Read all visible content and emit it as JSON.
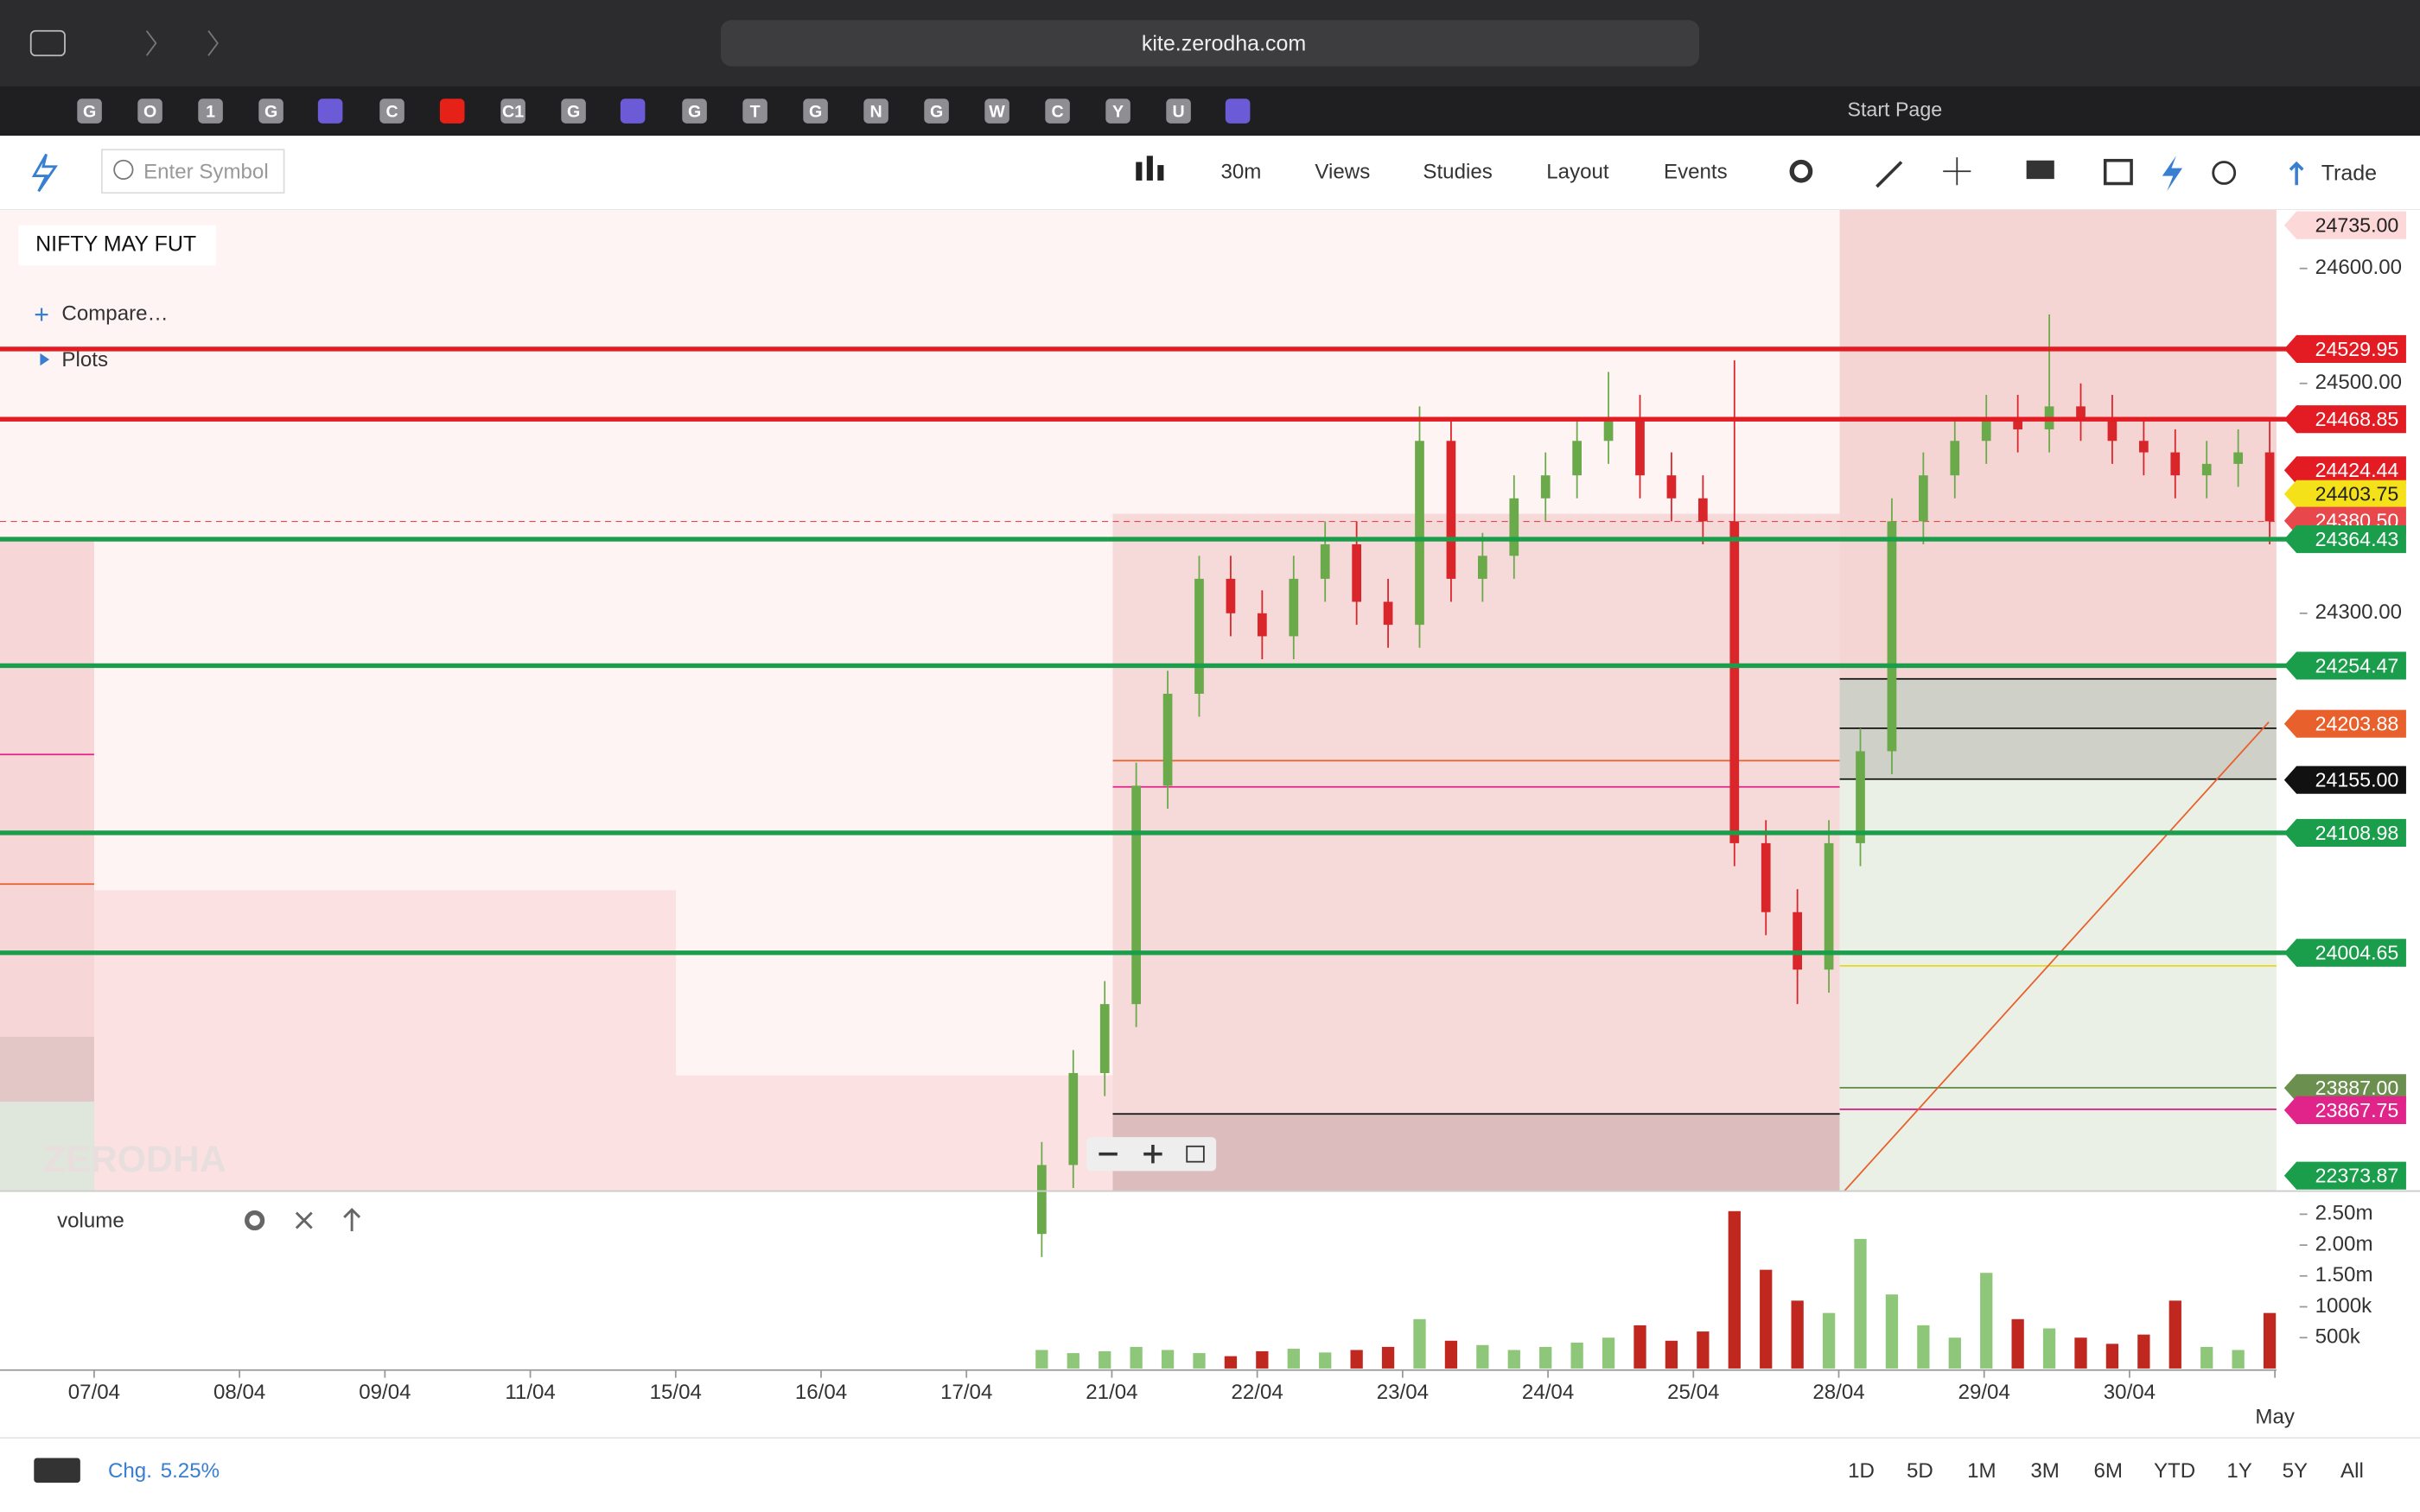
{
  "browser": {
    "url": "kite.zerodha.com",
    "tabs": [
      "G",
      "O",
      "1",
      "G",
      "C",
      "C1",
      "G",
      "G",
      "T",
      "G",
      "N",
      "G",
      "W",
      "C",
      "Y",
      "U"
    ],
    "start_page": "Start Page"
  },
  "toolbar": {
    "search_placeholder": "Enter Symbol",
    "interval": "30m",
    "menus": [
      "Views",
      "Studies",
      "Layout",
      "Events"
    ],
    "trade": "Trade"
  },
  "chart": {
    "symbol": "NIFTY MAY FUT",
    "compare": "Compare…",
    "plots": "Plots",
    "watermark": "ZERODHA",
    "yticks": [
      {
        "value": 24600,
        "label": "24600.00"
      },
      {
        "value": 24500,
        "label": "24500.00"
      },
      {
        "value": 24300,
        "label": "24300.00"
      }
    ],
    "dates": [
      "07/04",
      "08/04",
      "09/04",
      "11/04",
      "15/04",
      "16/04",
      "17/04",
      "21/04",
      "22/04",
      "23/04",
      "24/04",
      "25/04",
      "28/04",
      "29/04",
      "30/04",
      "May"
    ],
    "price_levels": [
      {
        "value": 24735,
        "label": "24735.00",
        "color": "#fdd8d8",
        "line": false
      },
      {
        "value": 24529.95,
        "label": "24529.95",
        "color": "#e31b23",
        "line": true
      },
      {
        "value": 24468.85,
        "label": "24468.85",
        "color": "#e31b23",
        "line": true
      },
      {
        "value": 24424.44,
        "label": "24424.44",
        "color": "#e31b23",
        "line": false
      },
      {
        "value": 24403.75,
        "label": "24403.75",
        "color": "#f5e11a",
        "line": false
      },
      {
        "value": 24380.5,
        "label": "24380.50",
        "color": "#e8474c",
        "line": false
      },
      {
        "value": 24364.43,
        "label": "24364.43",
        "color": "#1a9e4b",
        "line": true
      },
      {
        "value": 24254.47,
        "label": "24254.47",
        "color": "#1a9e4b",
        "line": true
      },
      {
        "value": 24203.88,
        "label": "24203.88",
        "color": "#e8602c",
        "line": false
      },
      {
        "value": 24155,
        "label": "24155.00",
        "color": "#111111",
        "line": false
      },
      {
        "value": 24108.98,
        "label": "24108.98",
        "color": "#1a9e4b",
        "line": true
      },
      {
        "value": 24004.65,
        "label": "24004.65",
        "color": "#1a9e4b",
        "line": true
      },
      {
        "value": 23887,
        "label": "23887.00",
        "color": "#6b8f4e",
        "line": false
      },
      {
        "value": 23867.75,
        "label": "23867.75",
        "color": "#e0248a",
        "line": false
      },
      {
        "value": 22373.87,
        "label": "22373.87",
        "color": "#1a9e4b",
        "line": false
      }
    ],
    "candles": {
      "open": [
        23760,
        23820,
        23900,
        23960,
        24150,
        24230,
        24330,
        24300,
        24280,
        24330,
        24360,
        24310,
        24290,
        24450,
        24330,
        24350,
        24400,
        24420,
        24450,
        24470,
        24420,
        24400,
        24380,
        24100,
        24040,
        23990,
        24100,
        24180,
        24380,
        24420,
        24450,
        24470,
        24460,
        24480,
        24470,
        24450,
        24440,
        24420,
        24430,
        24440
      ],
      "high": [
        23840,
        23920,
        23980,
        24170,
        24250,
        24350,
        24350,
        24320,
        24350,
        24380,
        24380,
        24330,
        24480,
        24470,
        24370,
        24420,
        24440,
        24470,
        24510,
        24490,
        24440,
        24420,
        24520,
        24120,
        24060,
        24120,
        24200,
        24400,
        24440,
        24470,
        24490,
        24490,
        24560,
        24500,
        24490,
        24470,
        24460,
        24450,
        24460,
        24470
      ],
      "low": [
        23740,
        23800,
        23880,
        23940,
        24130,
        24210,
        24280,
        24260,
        24260,
        24310,
        24290,
        24270,
        24270,
        24310,
        24310,
        24330,
        24380,
        24400,
        24430,
        24400,
        24380,
        24360,
        24080,
        24020,
        23960,
        23970,
        24080,
        24160,
        24360,
        24400,
        24430,
        24440,
        24440,
        24450,
        24430,
        24420,
        24400,
        24400,
        24410,
        24360
      ],
      "close": [
        23820,
        23900,
        23960,
        24150,
        24230,
        24330,
        24300,
        24280,
        24330,
        24360,
        24310,
        24290,
        24450,
        24330,
        24350,
        24400,
        24420,
        24450,
        24470,
        24420,
        24400,
        24380,
        24100,
        24040,
        23990,
        24100,
        24180,
        24380,
        24420,
        24450,
        24470,
        24460,
        24480,
        24470,
        24450,
        24440,
        24420,
        24430,
        24440,
        24380
      ]
    },
    "volume": {
      "label": "volume",
      "values": [
        300000,
        250000,
        280000,
        350000,
        300000,
        250000,
        200000,
        280000,
        320000,
        260000,
        300000,
        350000,
        800000,
        450000,
        380000,
        300000,
        350000,
        420000,
        500000,
        700000,
        450000,
        600000,
        2550000,
        1600000,
        1100000,
        900000,
        2100000,
        1200000,
        700000,
        500000,
        1550000,
        800000,
        650000,
        500000,
        400000,
        550000,
        1100000,
        350000,
        300000,
        900000
      ],
      "ticks": [
        {
          "value": 2500000,
          "label": "2.50m"
        },
        {
          "value": 2000000,
          "label": "2.00m"
        },
        {
          "value": 1500000,
          "label": "1.50m"
        },
        {
          "value": 1000000,
          "label": "1000k"
        },
        {
          "value": 500000,
          "label": "500k"
        }
      ]
    }
  },
  "footer": {
    "change_label": "Chg.",
    "change": "5.25%",
    "ranges": [
      "1D",
      "5D",
      "1M",
      "3M",
      "6M",
      "YTD",
      "1Y",
      "5Y",
      "All"
    ]
  }
}
